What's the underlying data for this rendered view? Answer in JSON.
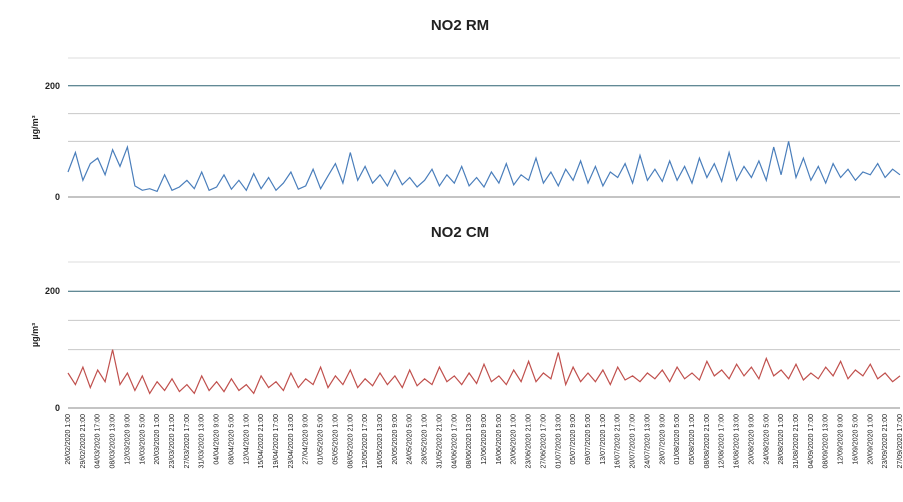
{
  "chart_data": [
    {
      "type": "line",
      "title": "NO2 RM",
      "y_label": "µg/m³",
      "ylim": [
        0,
        250
      ],
      "yticks": [
        0,
        200
      ],
      "minor_grid": [
        100,
        150
      ],
      "grid_color": "#2e6272",
      "minor_grid_color": "#c8c8c8",
      "series": [
        {
          "color": "#4a7ebb",
          "values": [
            45,
            80,
            30,
            60,
            70,
            40,
            85,
            55,
            90,
            20,
            12,
            15,
            10,
            40,
            12,
            18,
            30,
            15,
            45,
            12,
            18,
            40,
            14,
            30,
            12,
            42,
            15,
            35,
            12,
            25,
            45,
            14,
            20,
            50,
            15,
            38,
            60,
            25,
            80,
            30,
            55,
            25,
            40,
            20,
            48,
            22,
            35,
            18,
            30,
            50,
            20,
            40,
            25,
            55,
            20,
            35,
            18,
            45,
            25,
            60,
            22,
            40,
            30,
            70,
            25,
            45,
            20,
            50,
            30,
            65,
            25,
            55,
            20,
            45,
            35,
            60,
            25,
            75,
            30,
            50,
            28,
            65,
            30,
            55,
            25,
            70,
            35,
            60,
            28,
            80,
            30,
            55,
            35,
            65,
            30,
            90,
            40,
            100,
            35,
            70,
            30,
            55,
            25,
            60,
            35,
            50,
            30,
            45,
            40,
            60,
            35,
            50,
            40
          ]
        }
      ]
    },
    {
      "type": "line",
      "title": "NO2 CM",
      "y_label": "µg/m³",
      "ylim": [
        0,
        250
      ],
      "yticks": [
        0,
        200
      ],
      "minor_grid": [
        100,
        150
      ],
      "grid_color": "#2e6272",
      "minor_grid_color": "#c8c8c8",
      "categories": [
        "26/02/2020 1:00",
        null,
        "29/02/2020 21:00",
        null,
        "04/03/2020 17:00",
        null,
        "08/03/2020 13:00",
        null,
        "12/03/2020 9:00",
        null,
        "16/03/2020 5:00",
        null,
        "20/03/2020 1:00",
        null,
        "23/03/2020 21:00",
        null,
        "27/03/2020 17:00",
        null,
        "31/03/2020 13:00",
        null,
        "04/04/2020 9:00",
        null,
        "08/04/2020 5:00",
        null,
        "12/04/2020 1:00",
        null,
        "15/04/2020 21:00",
        null,
        "19/04/2020 17:00",
        null,
        "23/04/2020 13:00",
        null,
        "27/04/2020 9:00",
        null,
        "01/05/2020 5:00",
        null,
        "05/05/2020 1:00",
        null,
        "08/05/2020 21:00",
        null,
        "12/05/2020 17:00",
        null,
        "16/05/2020 13:00",
        null,
        "20/05/2020 9:00",
        null,
        "24/05/2020 5:00",
        null,
        "28/05/2020 1:00",
        null,
        "31/05/2020 21:00",
        null,
        "04/06/2020 17:00",
        null,
        "08/06/2020 13:00",
        null,
        "12/06/2020 9:00",
        null,
        "16/06/2020 5:00",
        null,
        "20/06/2020 1:00",
        null,
        "23/06/2020 21:00",
        null,
        "27/06/2020 17:00",
        null,
        "01/07/2020 13:00",
        null,
        "05/07/2020 9:00",
        null,
        "09/07/2020 5:00",
        null,
        "13/07/2020 1:00",
        null,
        "16/07/2020 21:00",
        null,
        "20/07/2020 17:00",
        null,
        "24/07/2020 13:00",
        null,
        "28/07/2020 9:00",
        null,
        "01/08/2020 5:00",
        null,
        "05/08/2020 1:00",
        null,
        "08/08/2020 21:00",
        null,
        "12/08/2020 17:00",
        null,
        "16/08/2020 13:00",
        null,
        "20/08/2020 9:00",
        null,
        "24/08/2020 5:00",
        null,
        "28/08/2020 1:00",
        null,
        "31/08/2020 21:00",
        null,
        "04/09/2020 17:00",
        null,
        "08/09/2020 13:00",
        null,
        "12/09/2020 9:00",
        null,
        "16/09/2020 5:00",
        null,
        "20/09/2020 1:00",
        null,
        "23/09/2020 21:00",
        null,
        "27/09/2020 17:00"
      ],
      "series": [
        {
          "color": "#c0504d",
          "values": [
            60,
            40,
            70,
            35,
            65,
            45,
            100,
            40,
            60,
            30,
            55,
            25,
            45,
            30,
            50,
            28,
            40,
            25,
            55,
            30,
            45,
            28,
            50,
            30,
            40,
            25,
            55,
            35,
            45,
            30,
            60,
            35,
            50,
            40,
            70,
            35,
            55,
            40,
            65,
            35,
            50,
            38,
            60,
            40,
            55,
            35,
            65,
            38,
            50,
            40,
            70,
            45,
            55,
            40,
            60,
            42,
            75,
            45,
            55,
            40,
            65,
            45,
            80,
            45,
            60,
            50,
            95,
            40,
            70,
            45,
            60,
            45,
            65,
            40,
            70,
            48,
            55,
            45,
            60,
            50,
            65,
            45,
            70,
            50,
            60,
            48,
            80,
            55,
            65,
            50,
            75,
            55,
            70,
            50,
            85,
            55,
            65,
            50,
            75,
            48,
            60,
            50,
            70,
            55,
            80,
            50,
            65,
            55,
            75,
            50,
            60,
            45,
            55
          ]
        }
      ]
    }
  ]
}
